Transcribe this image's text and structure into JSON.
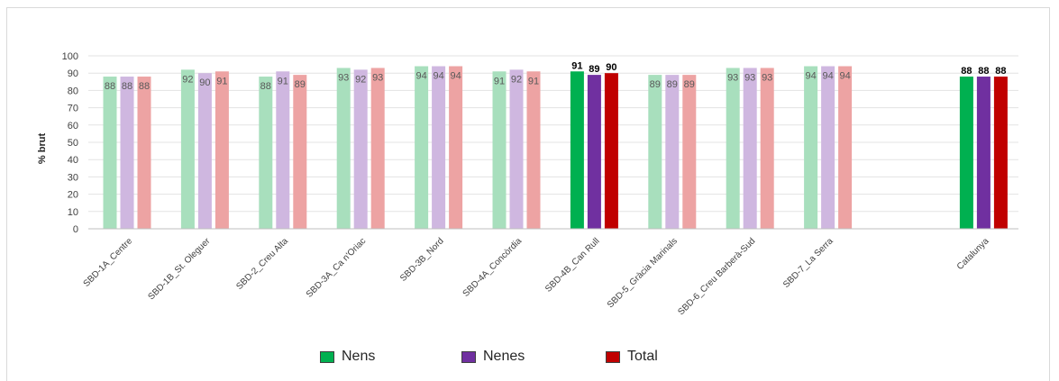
{
  "chart_data": {
    "type": "bar",
    "ylabel": "% brut",
    "ylim": [
      0,
      100
    ],
    "yticks": [
      0,
      10,
      20,
      30,
      40,
      50,
      60,
      70,
      80,
      90,
      100
    ],
    "grid": true,
    "legend_position": "bottom",
    "highlighted_categories": [
      "SBD-4B_Can Rull",
      "Catalunya"
    ],
    "categories": [
      "SBD-1A_Centre",
      "SBD-1B_St. Oleguer",
      "SBD-2_Creu Alta",
      "SBD-3A_Ca n'Oriac",
      "SBD-3B_Nord",
      "SBD-4A_Concòrdia",
      "SBD-4B_Can Rull",
      "SBD-5_Gràcia Marinals",
      "SBD-6_Creu Barberà-Sud",
      "SBD-7_La Serra",
      "Catalunya"
    ],
    "series": [
      {
        "name": "Nens",
        "color": "#00b050",
        "light_color": "#a8dfbd",
        "values": [
          88,
          92,
          88,
          93,
          94,
          91,
          91,
          89,
          93,
          94,
          88
        ]
      },
      {
        "name": "Nenes",
        "color": "#7030a0",
        "light_color": "#cfb7e0",
        "values": [
          88,
          90,
          91,
          92,
          94,
          92,
          89,
          89,
          93,
          94,
          88
        ]
      },
      {
        "name": "Total",
        "color": "#c00000",
        "light_color": "#eda3a3",
        "values": [
          88,
          91,
          89,
          93,
          94,
          91,
          90,
          89,
          93,
          94,
          88
        ]
      }
    ]
  }
}
